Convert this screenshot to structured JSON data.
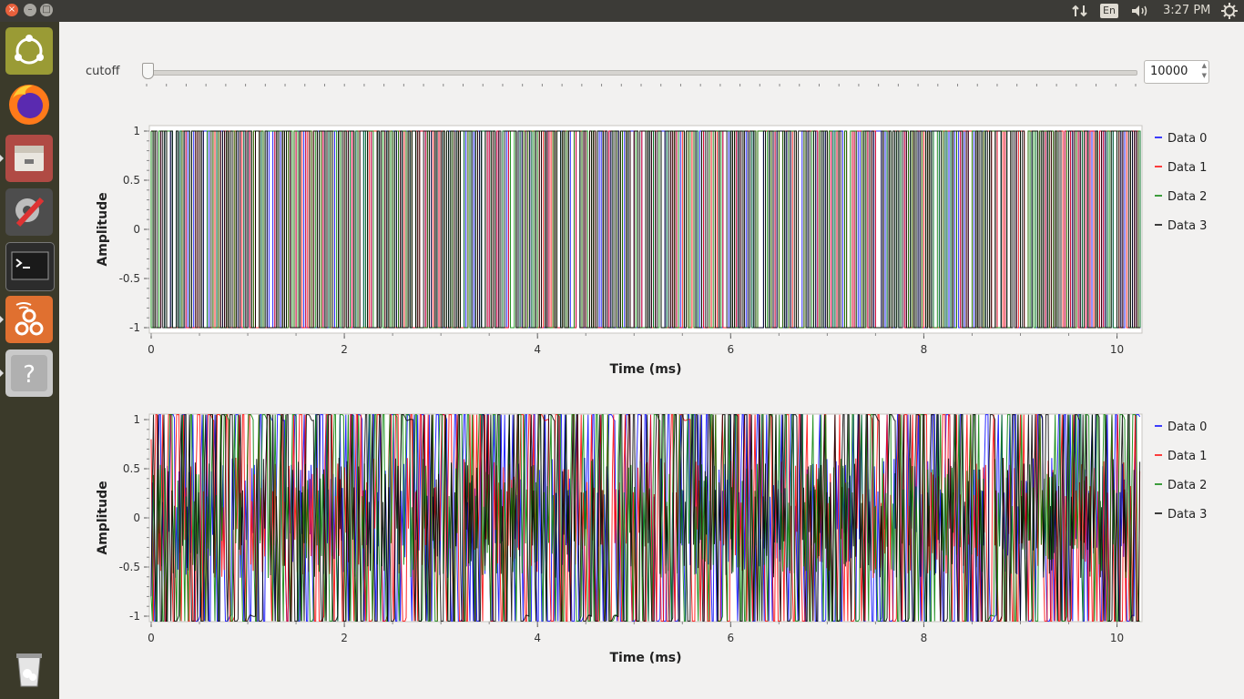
{
  "window": {
    "close": "×",
    "minimize": "–",
    "maximize": "□"
  },
  "tray": {
    "network_icon": "network-updown-icon",
    "language": "En",
    "volume_icon": "speaker-icon",
    "clock": "3:27 PM",
    "settings_icon": "gear-icon"
  },
  "launcher": {
    "items": [
      "ubuntu-dash",
      "firefox",
      "file-manager",
      "system-settings",
      "terminal",
      "gnuradio-companion",
      "help"
    ],
    "trash": "trash"
  },
  "controls": {
    "cutoff_label": "cutoff",
    "cutoff_value": "10000",
    "slider_level": 0.0
  },
  "chart_data": [
    {
      "type": "line",
      "xlabel": "Time (ms)",
      "ylabel": "Amplitude",
      "xlim": [
        0,
        10.24
      ],
      "ylim": [
        -1,
        1
      ],
      "x_ticks": [
        "0",
        "2",
        "4",
        "6",
        "8",
        "10"
      ],
      "y_ticks": [
        "1",
        "0.5",
        "0",
        "-0.5",
        "-1"
      ],
      "legend": "right",
      "series": [
        {
          "name": "Data 0",
          "color": "#0000ff"
        },
        {
          "name": "Data 1",
          "color": "#ff0000"
        },
        {
          "name": "Data 2",
          "color": "#008000"
        },
        {
          "name": "Data 3",
          "color": "#000000"
        }
      ],
      "note_signal": "binary random ±1"
    },
    {
      "type": "line",
      "xlabel": "Time (ms)",
      "ylabel": "Amplitude",
      "xlim": [
        0,
        10.24
      ],
      "ylim": [
        -1,
        1
      ],
      "x_ticks": [
        "0",
        "2",
        "4",
        "6",
        "8",
        "10"
      ],
      "y_ticks": [
        "1",
        "0.5",
        "0",
        "-0.5",
        "-1"
      ],
      "legend": "right",
      "series": [
        {
          "name": "Data 0",
          "color": "#0000ff"
        },
        {
          "name": "Data 1",
          "color": "#ff0000"
        },
        {
          "name": "Data 2",
          "color": "#008000"
        },
        {
          "name": "Data 3",
          "color": "#000000"
        }
      ],
      "note_signal": "filtered"
    }
  ]
}
